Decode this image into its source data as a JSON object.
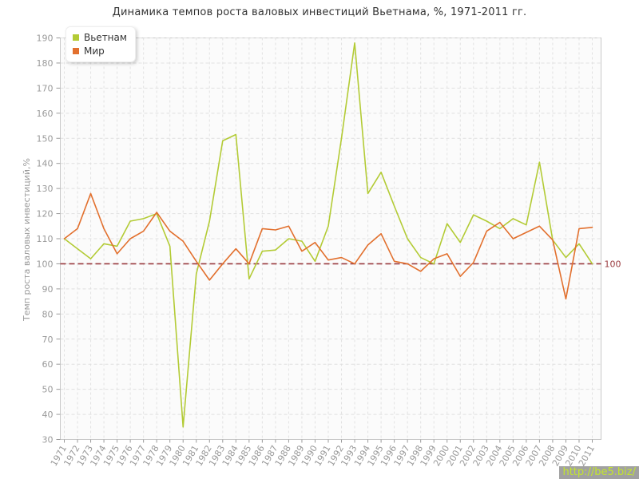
{
  "watermark": "http://be5.biz/",
  "reference_line": {
    "value": 100,
    "label": "100",
    "color": "#9a3b3f"
  },
  "legend": [
    {
      "label": "Вьетнам",
      "color": "#b3cb35"
    },
    {
      "label": "Мир",
      "color": "#e2702e"
    }
  ],
  "chart_data": {
    "type": "line",
    "title": "Динамика темпов роста валовых инвестиций Вьетнама, %, 1971-2011 гг.",
    "xlabel": "",
    "ylabel": "Темп роста валовых инвестиций,%",
    "ylim": [
      30,
      190
    ],
    "ytick_step": 10,
    "grid": true,
    "legend_position": "top-left",
    "reference_value": 100,
    "categories": [
      "1971",
      "1972",
      "1973",
      "1974",
      "1975",
      "1976",
      "1977",
      "1978",
      "1979",
      "1980",
      "1981",
      "1982",
      "1983",
      "1984",
      "1985",
      "1986",
      "1987",
      "1988",
      "1989",
      "1990",
      "1991",
      "1992",
      "1993",
      "1994",
      "1995",
      "1996",
      "1997",
      "1998",
      "1999",
      "2000",
      "2001",
      "2002",
      "2003",
      "2004",
      "2005",
      "2006",
      "2007",
      "2008",
      "2009",
      "2010",
      "2011"
    ],
    "series": [
      {
        "name": "Вьетнам",
        "color": "#b3cb35",
        "values": [
          110,
          106,
          102,
          108,
          107,
          117,
          118,
          120,
          107,
          35,
          96,
          117,
          149,
          151.5,
          94,
          105,
          105.5,
          110,
          109,
          101,
          115,
          150,
          188,
          128,
          136.5,
          123,
          110,
          102.5,
          100,
          116,
          108.5,
          119.5,
          117,
          114,
          118,
          115.5,
          140.5,
          109.5,
          102.5,
          108,
          100
        ]
      },
      {
        "name": "Мир",
        "color": "#e2702e",
        "values": [
          110,
          114,
          128,
          114,
          104,
          110,
          113,
          120.5,
          113,
          109,
          101,
          93.5,
          100,
          106,
          100,
          114,
          113.5,
          115,
          105,
          108.5,
          101.5,
          102.5,
          100,
          107.5,
          112,
          101,
          100,
          97,
          102,
          104,
          95,
          100.5,
          113,
          116.5,
          110,
          112.5,
          115,
          109.5,
          86,
          114,
          114.5
        ]
      }
    ]
  }
}
